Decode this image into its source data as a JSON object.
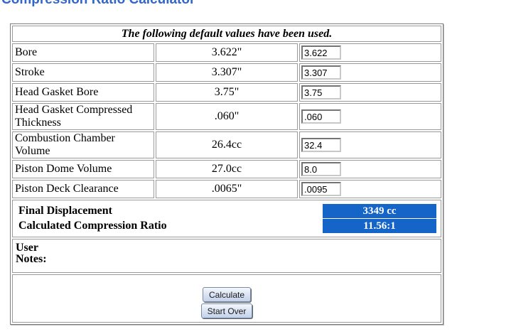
{
  "page": {
    "title": "Compression Ratio Calculator"
  },
  "table": {
    "caption": "The following default values have been used.",
    "rows": [
      {
        "label": "Bore",
        "default": "3.622\"",
        "input": "3.622"
      },
      {
        "label": "Stroke",
        "default": "3.307\"",
        "input": "3.307"
      },
      {
        "label": "Head Gasket Bore",
        "default": "3.75\"",
        "input": "3.75"
      },
      {
        "label": "Head Gasket Compressed Thickness",
        "default": ".060\"",
        "input": ".060"
      },
      {
        "label": "Combustion Chamber Volume",
        "default": "26.4cc",
        "input": "32.4"
      },
      {
        "label": "Piston Dome Volume",
        "default": "27.0cc",
        "input": "8.0"
      },
      {
        "label": "Piston Deck Clearance",
        "default": ".0065\"",
        "input": ".0095"
      }
    ],
    "results": [
      {
        "label": "Final Displacement",
        "value": "3349 cc"
      },
      {
        "label": "Calculated Compression Ratio",
        "value": "11.56:1"
      }
    ]
  },
  "notes": {
    "line1": "User",
    "line2": "Notes:"
  },
  "buttons": {
    "calculate": "Calculate",
    "start_over": "Start Over"
  },
  "colors": {
    "title_text": "#3366CC",
    "result_value_bg": "#1565C8",
    "result_value_text": "#FFFFFF",
    "table_border": "#9A9A9A",
    "outer_border": "#7E7E7E"
  }
}
